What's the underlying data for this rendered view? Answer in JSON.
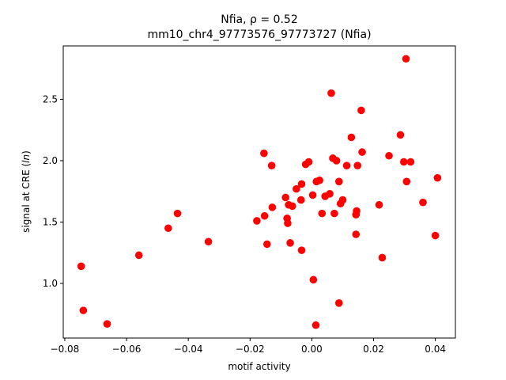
{
  "chart_data": {
    "type": "scatter",
    "title_line1": "Nfia, ρ = 0.52",
    "title_line2": "mm10_chr4_97773576_97773727 (Nfia)",
    "xlabel": "motif activity",
    "ylabel": "signal at CRE (ln)",
    "xlim": [
      -0.0805,
      0.0465
    ],
    "ylim": [
      0.555,
      2.935
    ],
    "xticks": [
      -0.08,
      -0.06,
      -0.04,
      -0.02,
      0.0,
      0.02,
      0.04
    ],
    "xtick_labels": [
      "−0.08",
      "−0.06",
      "−0.04",
      "−0.02",
      "0.00",
      "0.02",
      "0.04"
    ],
    "yticks": [
      1.0,
      1.5,
      2.0,
      2.5
    ],
    "ytick_labels": [
      "1.0",
      "1.5",
      "2.0",
      "2.5"
    ],
    "grid": false,
    "marker_color": "#ff0000",
    "points": [
      {
        "x": -0.0747,
        "y": 1.14
      },
      {
        "x": -0.074,
        "y": 0.78
      },
      {
        "x": -0.0663,
        "y": 0.67
      },
      {
        "x": -0.056,
        "y": 1.23
      },
      {
        "x": -0.0465,
        "y": 1.45
      },
      {
        "x": -0.0435,
        "y": 1.57
      },
      {
        "x": -0.0335,
        "y": 1.34
      },
      {
        "x": -0.0178,
        "y": 1.51
      },
      {
        "x": -0.0155,
        "y": 2.06
      },
      {
        "x": -0.0153,
        "y": 1.55
      },
      {
        "x": -0.0145,
        "y": 1.32
      },
      {
        "x": -0.013,
        "y": 1.96
      },
      {
        "x": -0.0128,
        "y": 1.62
      },
      {
        "x": -0.0085,
        "y": 1.7
      },
      {
        "x": -0.008,
        "y": 1.53
      },
      {
        "x": -0.0078,
        "y": 1.49
      },
      {
        "x": -0.0075,
        "y": 1.64
      },
      {
        "x": -0.007,
        "y": 1.33
      },
      {
        "x": -0.0063,
        "y": 1.63
      },
      {
        "x": -0.005,
        "y": 1.77
      },
      {
        "x": -0.0035,
        "y": 1.68
      },
      {
        "x": -0.0033,
        "y": 1.81
      },
      {
        "x": -0.0033,
        "y": 1.27
      },
      {
        "x": -0.002,
        "y": 1.97
      },
      {
        "x": -0.001,
        "y": 1.99
      },
      {
        "x": 0.0003,
        "y": 1.72
      },
      {
        "x": 0.0005,
        "y": 1.03
      },
      {
        "x": 0.0013,
        "y": 0.66
      },
      {
        "x": 0.0015,
        "y": 1.83
      },
      {
        "x": 0.0025,
        "y": 1.84
      },
      {
        "x": 0.0033,
        "y": 1.57
      },
      {
        "x": 0.0043,
        "y": 1.71
      },
      {
        "x": 0.0058,
        "y": 1.73
      },
      {
        "x": 0.0063,
        "y": 2.55
      },
      {
        "x": 0.0068,
        "y": 2.02
      },
      {
        "x": 0.0073,
        "y": 1.57
      },
      {
        "x": 0.008,
        "y": 2.0
      },
      {
        "x": 0.0088,
        "y": 0.84
      },
      {
        "x": 0.0088,
        "y": 1.83
      },
      {
        "x": 0.0093,
        "y": 1.65
      },
      {
        "x": 0.01,
        "y": 1.68
      },
      {
        "x": 0.0113,
        "y": 1.96
      },
      {
        "x": 0.0128,
        "y": 2.19
      },
      {
        "x": 0.0143,
        "y": 1.4
      },
      {
        "x": 0.0143,
        "y": 1.56
      },
      {
        "x": 0.0145,
        "y": 1.59
      },
      {
        "x": 0.0148,
        "y": 1.96
      },
      {
        "x": 0.016,
        "y": 2.41
      },
      {
        "x": 0.0163,
        "y": 2.07
      },
      {
        "x": 0.0218,
        "y": 1.64
      },
      {
        "x": 0.0228,
        "y": 1.21
      },
      {
        "x": 0.025,
        "y": 2.04
      },
      {
        "x": 0.0287,
        "y": 2.21
      },
      {
        "x": 0.0298,
        "y": 1.99
      },
      {
        "x": 0.0305,
        "y": 2.83
      },
      {
        "x": 0.0307,
        "y": 1.83
      },
      {
        "x": 0.032,
        "y": 1.99
      },
      {
        "x": 0.036,
        "y": 1.66
      },
      {
        "x": 0.04,
        "y": 1.39
      },
      {
        "x": 0.0407,
        "y": 1.86
      }
    ]
  }
}
